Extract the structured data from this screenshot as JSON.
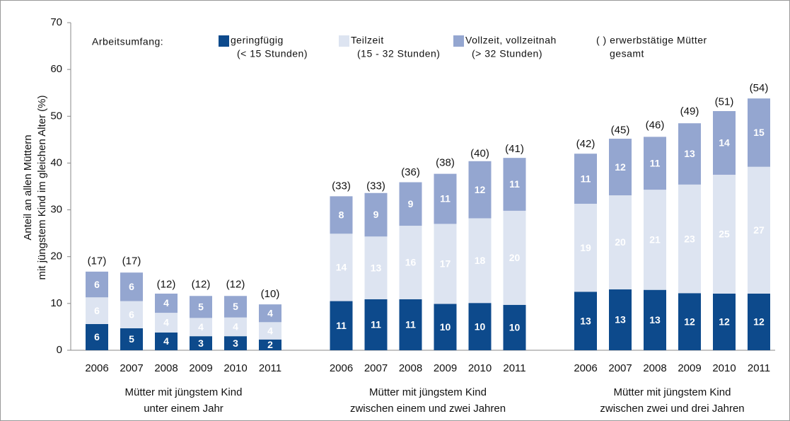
{
  "chart_data": {
    "type": "stacked_bar",
    "y_label": [
      "Anteil an allen Müttern",
      "mit jüngstem Kind im gleichen Alter (%)"
    ],
    "legend_title": "Arbeitsumfang:",
    "legend_note": [
      "( ) erwerbstätige Mütter",
      "gesamt"
    ],
    "categories": [
      "2006",
      "2007",
      "2008",
      "2009",
      "2010",
      "2011",
      "2006",
      "2007",
      "2008",
      "2009",
      "2010",
      "2011",
      "2006",
      "2007",
      "2008",
      "2009",
      "2010",
      "2011"
    ],
    "group_labels": [
      [
        "Mütter mit jüngstem Kind",
        "unter einem Jahr"
      ],
      [
        "Mütter mit jüngstem Kind",
        "zwischen einem und zwei Jahren"
      ],
      [
        "Mütter mit jüngstem Kind",
        "zwischen zwei und drei Jahren"
      ]
    ],
    "series": [
      {
        "name": "geringfügig",
        "subtitle": "(< 15 Stunden)",
        "color": "#0d4a8c",
        "values": [
          5.6,
          4.7,
          3.8,
          3.0,
          3.0,
          2.3,
          10.5,
          10.9,
          10.9,
          9.9,
          10.1,
          9.7,
          12.5,
          13.0,
          12.9,
          12.2,
          12.1,
          12.1
        ],
        "value_labels": [
          "6",
          "5",
          "4",
          "3",
          "3",
          "2",
          "11",
          "11",
          "11",
          "10",
          "10",
          "10",
          "13",
          "13",
          "13",
          "12",
          "12",
          "12"
        ]
      },
      {
        "name": "Teilzeit",
        "subtitle": "(15 - 32 Stunden)",
        "color": "#dde4f1",
        "values": [
          5.7,
          5.8,
          4.2,
          3.9,
          4.0,
          3.7,
          14.4,
          13.4,
          15.7,
          17.1,
          18.1,
          20.1,
          18.8,
          20.1,
          21.4,
          23.2,
          25.4,
          27.1
        ],
        "value_labels": [
          "6",
          "6",
          "4",
          "4",
          "4",
          "4",
          "14",
          "13",
          "16",
          "17",
          "18",
          "20",
          "19",
          "20",
          "21",
          "23",
          "25",
          "27"
        ]
      },
      {
        "name": "Vollzeit, vollzeitnah",
        "subtitle": "(> 32 Stunden)",
        "color": "#94a6d0",
        "values": [
          5.5,
          6.1,
          4.1,
          4.7,
          4.6,
          3.8,
          8.0,
          9.3,
          9.3,
          10.7,
          12.2,
          11.3,
          10.7,
          12.1,
          11.3,
          13.1,
          13.6,
          14.6
        ],
        "value_labels": [
          "6",
          "6",
          "4",
          "5",
          "5",
          "4",
          "8",
          "9",
          "9",
          "11",
          "12",
          "11",
          "11",
          "12",
          "11",
          "13",
          "14",
          "15"
        ]
      }
    ],
    "totals": {
      "values": [
        17,
        17,
        12,
        12,
        12,
        10,
        33,
        33,
        36,
        38,
        40,
        41,
        42,
        45,
        46,
        49,
        51,
        54
      ],
      "value_labels": [
        "(17)",
        "(17)",
        "(12)",
        "(12)",
        "(12)",
        "(10)",
        "(33)",
        "(33)",
        "(36)",
        "(38)",
        "(40)",
        "(41)",
        "(42)",
        "(45)",
        "(46)",
        "(49)",
        "(51)",
        "(54)"
      ]
    },
    "ylim": [
      0,
      70
    ],
    "yticks": [
      0,
      10,
      20,
      30,
      40,
      50,
      60,
      70
    ]
  }
}
